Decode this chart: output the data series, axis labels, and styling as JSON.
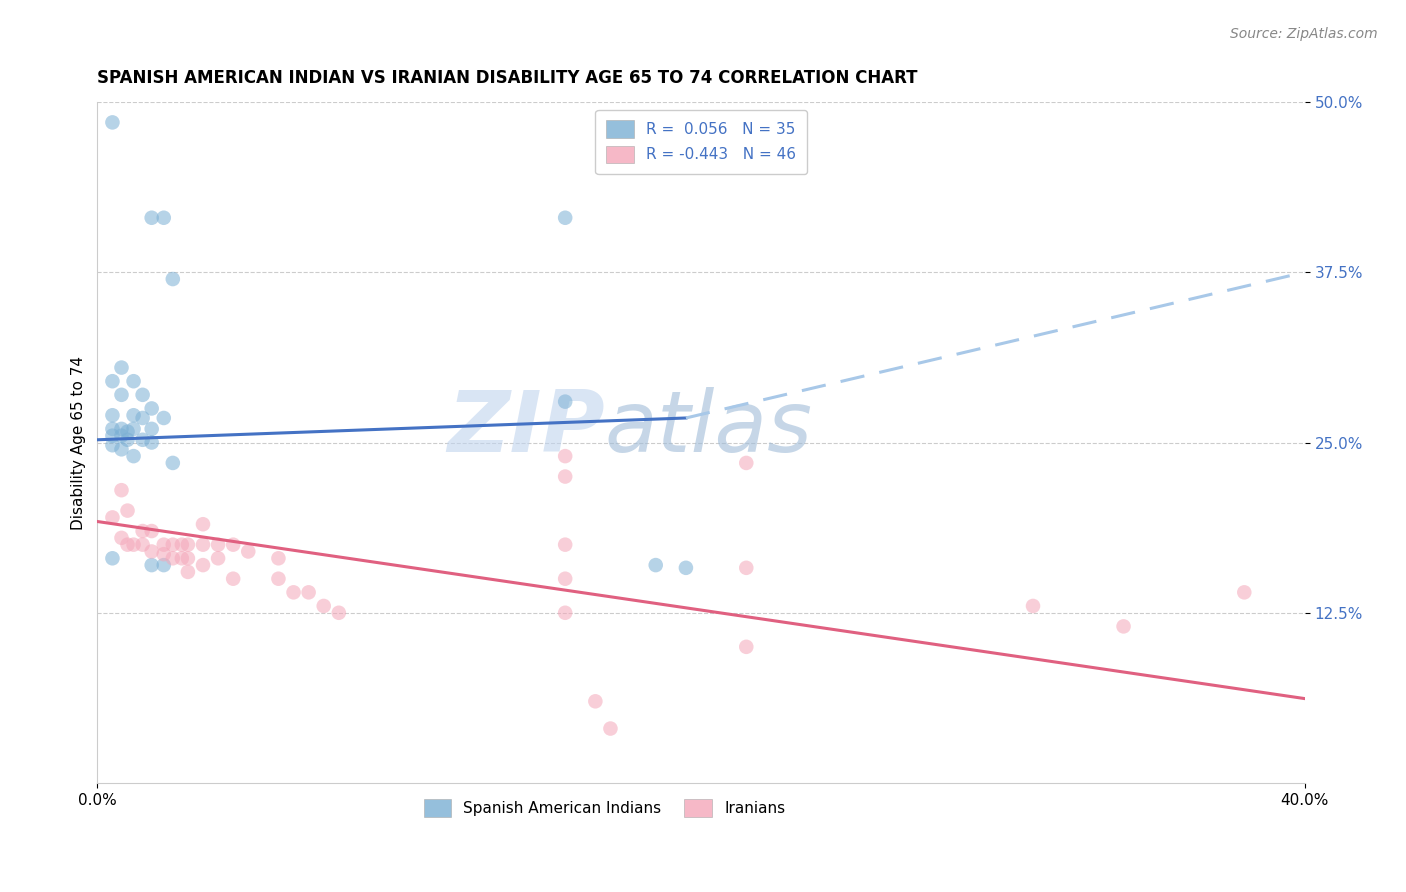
{
  "title": "SPANISH AMERICAN INDIAN VS IRANIAN DISABILITY AGE 65 TO 74 CORRELATION CHART",
  "source": "Source: ZipAtlas.com",
  "ylabel": "Disability Age 65 to 74",
  "legend_label_blue": "R =  0.056   N = 35",
  "legend_label_pink": "R = -0.443   N = 46",
  "legend_label_blue_series": "Spanish American Indians",
  "legend_label_pink_series": "Iranians",
  "xlim": [
    0.0,
    0.4
  ],
  "ylim": [
    0.0,
    0.5
  ],
  "xtick_labels": [
    "0.0%",
    "40.0%"
  ],
  "ytick_labels": [
    "12.5%",
    "25.0%",
    "37.5%",
    "50.0%"
  ],
  "ytick_positions": [
    0.125,
    0.25,
    0.375,
    0.5
  ],
  "grid_color": "#cccccc",
  "blue_color": "#7bafd4",
  "pink_color": "#f4a7b9",
  "blue_line_color": "#4472c4",
  "pink_line_color": "#e06080",
  "blue_dashed_color": "#a8c8e8",
  "background_color": "#ffffff",
  "watermark_zip": "ZIP",
  "watermark_atlas": "atlas",
  "watermark_zip_color": "#c0d4ee",
  "watermark_atlas_color": "#a0bcd8",
  "blue_dots": [
    [
      0.005,
      0.485
    ],
    [
      0.018,
      0.415
    ],
    [
      0.022,
      0.415
    ],
    [
      0.025,
      0.37
    ],
    [
      0.008,
      0.305
    ],
    [
      0.005,
      0.295
    ],
    [
      0.012,
      0.295
    ],
    [
      0.008,
      0.285
    ],
    [
      0.015,
      0.285
    ],
    [
      0.018,
      0.275
    ],
    [
      0.005,
      0.27
    ],
    [
      0.012,
      0.27
    ],
    [
      0.015,
      0.268
    ],
    [
      0.022,
      0.268
    ],
    [
      0.005,
      0.26
    ],
    [
      0.008,
      0.26
    ],
    [
      0.01,
      0.258
    ],
    [
      0.012,
      0.26
    ],
    [
      0.018,
      0.26
    ],
    [
      0.005,
      0.255
    ],
    [
      0.008,
      0.255
    ],
    [
      0.01,
      0.252
    ],
    [
      0.015,
      0.252
    ],
    [
      0.018,
      0.25
    ],
    [
      0.005,
      0.248
    ],
    [
      0.008,
      0.245
    ],
    [
      0.012,
      0.24
    ],
    [
      0.025,
      0.235
    ],
    [
      0.005,
      0.165
    ],
    [
      0.018,
      0.16
    ],
    [
      0.022,
      0.16
    ],
    [
      0.155,
      0.415
    ],
    [
      0.155,
      0.28
    ],
    [
      0.185,
      0.16
    ],
    [
      0.195,
      0.158
    ]
  ],
  "pink_dots": [
    [
      0.005,
      0.195
    ],
    [
      0.008,
      0.215
    ],
    [
      0.008,
      0.18
    ],
    [
      0.01,
      0.2
    ],
    [
      0.01,
      0.175
    ],
    [
      0.012,
      0.175
    ],
    [
      0.015,
      0.185
    ],
    [
      0.015,
      0.175
    ],
    [
      0.018,
      0.185
    ],
    [
      0.018,
      0.17
    ],
    [
      0.022,
      0.175
    ],
    [
      0.022,
      0.168
    ],
    [
      0.025,
      0.175
    ],
    [
      0.025,
      0.165
    ],
    [
      0.028,
      0.175
    ],
    [
      0.028,
      0.165
    ],
    [
      0.03,
      0.175
    ],
    [
      0.03,
      0.165
    ],
    [
      0.03,
      0.155
    ],
    [
      0.035,
      0.19
    ],
    [
      0.035,
      0.175
    ],
    [
      0.035,
      0.16
    ],
    [
      0.04,
      0.175
    ],
    [
      0.04,
      0.165
    ],
    [
      0.045,
      0.175
    ],
    [
      0.045,
      0.15
    ],
    [
      0.05,
      0.17
    ],
    [
      0.06,
      0.165
    ],
    [
      0.06,
      0.15
    ],
    [
      0.065,
      0.14
    ],
    [
      0.07,
      0.14
    ],
    [
      0.075,
      0.13
    ],
    [
      0.08,
      0.125
    ],
    [
      0.155,
      0.225
    ],
    [
      0.155,
      0.24
    ],
    [
      0.155,
      0.175
    ],
    [
      0.155,
      0.15
    ],
    [
      0.155,
      0.125
    ],
    [
      0.165,
      0.06
    ],
    [
      0.17,
      0.04
    ],
    [
      0.215,
      0.235
    ],
    [
      0.215,
      0.158
    ],
    [
      0.215,
      0.1
    ],
    [
      0.31,
      0.13
    ],
    [
      0.34,
      0.115
    ],
    [
      0.38,
      0.14
    ]
  ],
  "blue_solid_line": {
    "x0": 0.0,
    "x1": 0.195,
    "y0": 0.252,
    "y1": 0.268
  },
  "blue_dashed_line": {
    "x0": 0.195,
    "x1": 0.4,
    "y0": 0.268,
    "y1": 0.375
  },
  "pink_line": {
    "x0": 0.0,
    "x1": 0.4,
    "y0": 0.192,
    "y1": 0.062
  },
  "title_fontsize": 12,
  "source_fontsize": 10,
  "axis_label_fontsize": 11,
  "tick_fontsize": 11,
  "legend_fontsize": 11,
  "dot_size": 110,
  "dot_alpha": 0.55,
  "line_width": 2.2
}
